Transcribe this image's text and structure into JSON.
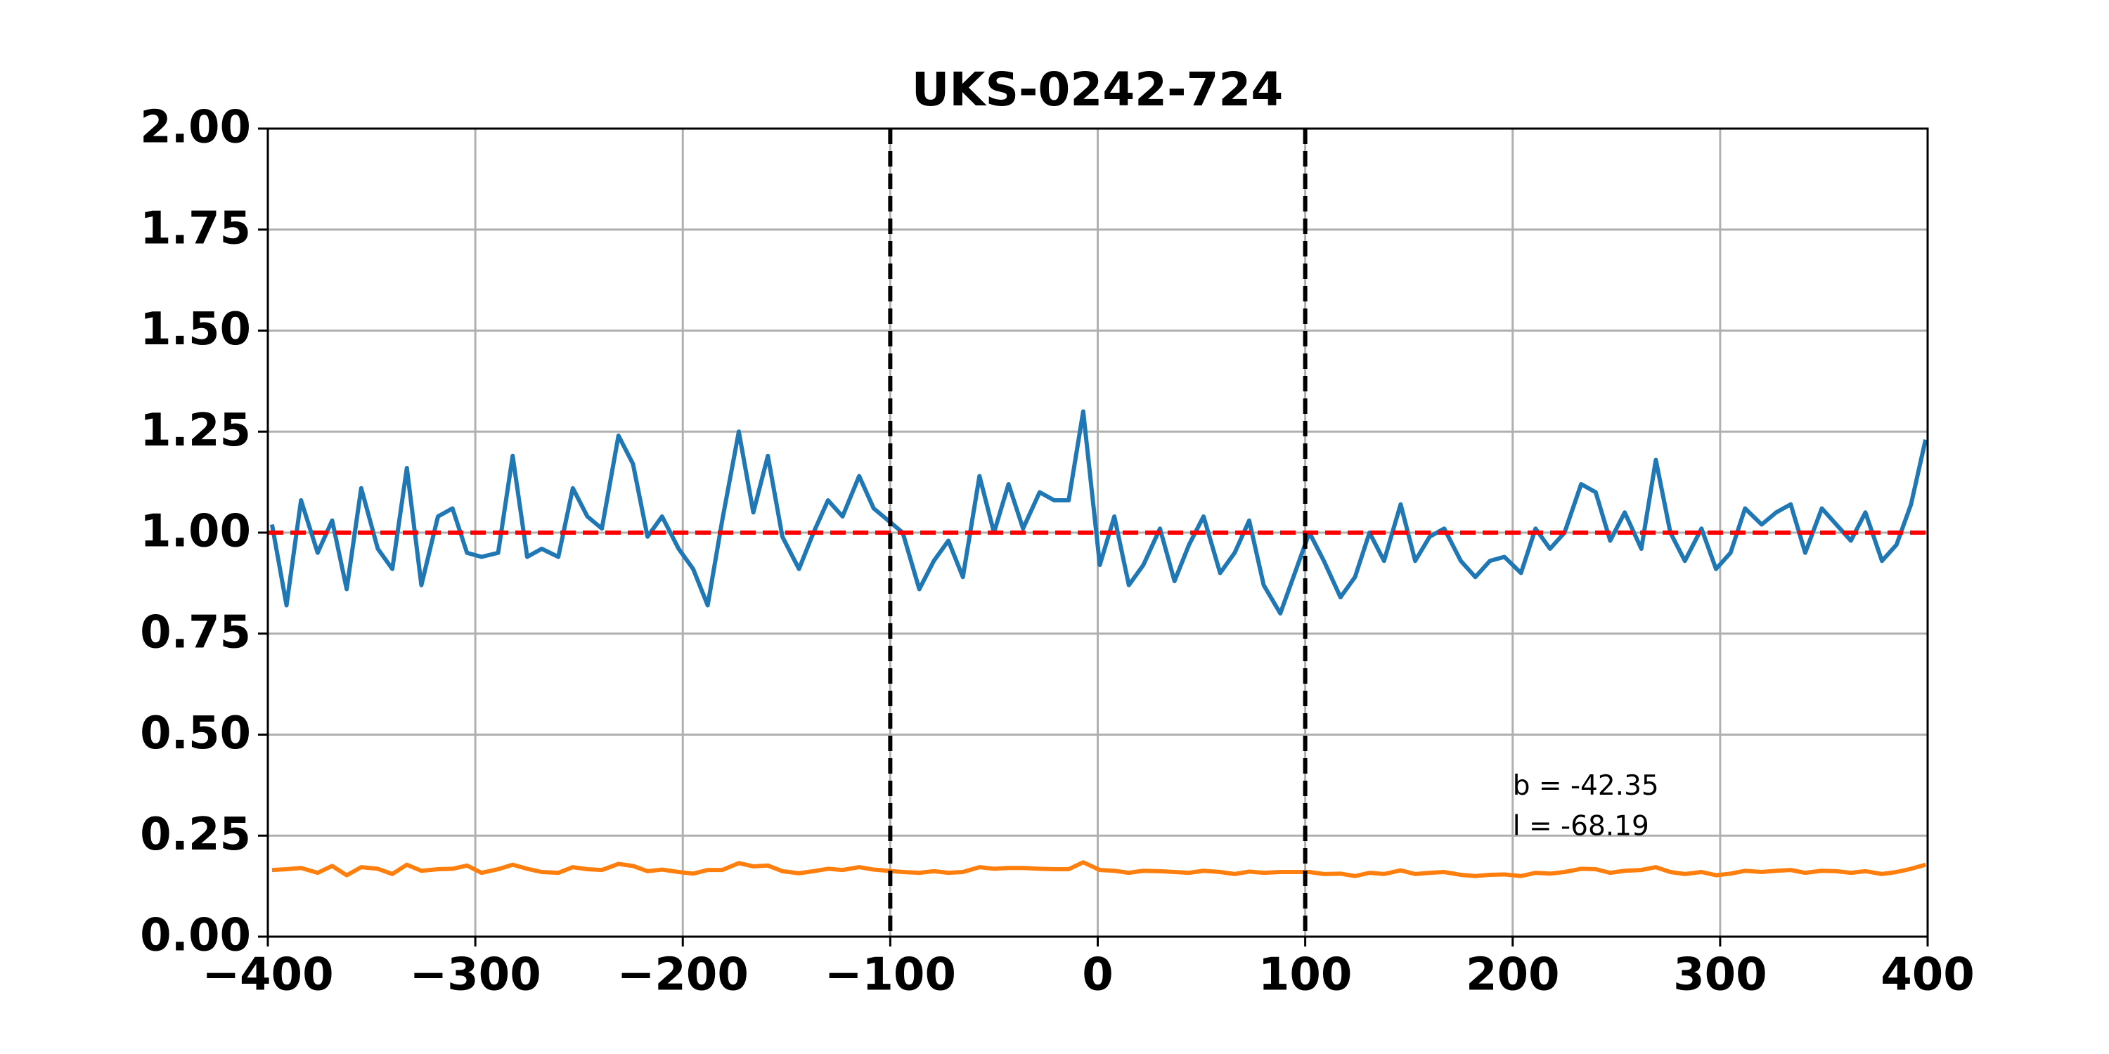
{
  "chart_data": {
    "type": "line",
    "title": "UKS-0242-724",
    "x": [
      -398,
      -391,
      -384,
      -376,
      -369,
      -362,
      -355,
      -347,
      -340,
      -333,
      -326,
      -318,
      -311,
      -304,
      -297,
      -289,
      -282,
      -275,
      -268,
      -260,
      -253,
      -246,
      -239,
      -231,
      -224,
      -217,
      -210,
      -202,
      -195,
      -188,
      -181,
      -173,
      -166,
      -159,
      -152,
      -144,
      -137,
      -130,
      -123,
      -115,
      -108,
      -101,
      -94,
      -86,
      -79,
      -72,
      -65,
      -57,
      -50,
      -43,
      -36,
      -28,
      -21,
      -14,
      -7,
      1,
      8,
      15,
      22,
      30,
      37,
      44,
      51,
      59,
      66,
      73,
      80,
      88,
      95,
      102,
      109,
      117,
      124,
      131,
      138,
      146,
      153,
      160,
      167,
      175,
      182,
      189,
      196,
      204,
      211,
      218,
      225,
      233,
      240,
      247,
      254,
      262,
      269,
      276,
      283,
      291,
      298,
      305,
      312,
      320,
      327,
      334,
      341,
      349,
      356,
      363,
      370,
      378,
      385,
      392,
      399
    ],
    "series": [
      {
        "color": "#1f77b4",
        "values": [
          1.02,
          0.82,
          1.08,
          0.95,
          1.03,
          0.86,
          1.11,
          0.96,
          0.91,
          1.16,
          0.87,
          1.04,
          1.06,
          0.95,
          0.94,
          0.95,
          1.19,
          0.94,
          0.96,
          0.94,
          1.11,
          1.04,
          1.01,
          1.24,
          1.17,
          0.99,
          1.04,
          0.96,
          0.91,
          0.82,
          1.03,
          1.25,
          1.05,
          1.19,
          0.99,
          0.91,
          1.0,
          1.08,
          1.04,
          1.14,
          1.06,
          1.03,
          1.0,
          0.86,
          0.93,
          0.98,
          0.89,
          1.14,
          1.0,
          1.12,
          1.01,
          1.1,
          1.08,
          1.08,
          1.3,
          0.92,
          1.04,
          0.87,
          0.92,
          1.01,
          0.88,
          0.97,
          1.04,
          0.9,
          0.95,
          1.03,
          0.87,
          0.8,
          0.9,
          1.0,
          0.93,
          0.84,
          0.89,
          1.0,
          0.93,
          1.07,
          0.93,
          0.99,
          1.01,
          0.93,
          0.89,
          0.93,
          0.94,
          0.9,
          1.01,
          0.96,
          1.0,
          1.12,
          1.1,
          0.98,
          1.05,
          0.96,
          1.18,
          1.0,
          0.93,
          1.01,
          0.91,
          0.95,
          1.06,
          1.02,
          1.05,
          1.07,
          0.95,
          1.06,
          1.02,
          0.98,
          1.05,
          0.93,
          0.97,
          1.07,
          1.23
        ]
      },
      {
        "color": "#ff7f0e",
        "values": [
          0.165,
          0.167,
          0.17,
          0.158,
          0.175,
          0.152,
          0.172,
          0.168,
          0.155,
          0.178,
          0.163,
          0.167,
          0.168,
          0.176,
          0.158,
          0.167,
          0.178,
          0.168,
          0.16,
          0.158,
          0.172,
          0.167,
          0.165,
          0.18,
          0.175,
          0.162,
          0.166,
          0.16,
          0.156,
          0.165,
          0.165,
          0.182,
          0.174,
          0.176,
          0.162,
          0.157,
          0.162,
          0.168,
          0.165,
          0.172,
          0.166,
          0.163,
          0.16,
          0.158,
          0.162,
          0.158,
          0.16,
          0.172,
          0.168,
          0.17,
          0.17,
          0.168,
          0.167,
          0.167,
          0.184,
          0.165,
          0.163,
          0.158,
          0.163,
          0.162,
          0.16,
          0.158,
          0.163,
          0.16,
          0.155,
          0.161,
          0.158,
          0.16,
          0.16,
          0.16,
          0.155,
          0.156,
          0.15,
          0.158,
          0.155,
          0.164,
          0.155,
          0.158,
          0.16,
          0.153,
          0.15,
          0.153,
          0.154,
          0.15,
          0.158,
          0.156,
          0.16,
          0.168,
          0.167,
          0.158,
          0.163,
          0.165,
          0.172,
          0.16,
          0.155,
          0.16,
          0.152,
          0.156,
          0.163,
          0.16,
          0.163,
          0.165,
          0.158,
          0.163,
          0.162,
          0.158,
          0.162,
          0.155,
          0.16,
          0.168,
          0.178
        ]
      }
    ],
    "xlim": [
      -400,
      400
    ],
    "xticks": [
      {
        "value": -400,
        "label": "−400"
      },
      {
        "value": -300,
        "label": "−300"
      },
      {
        "value": -200,
        "label": "−200"
      },
      {
        "value": -100,
        "label": "−100"
      },
      0,
      100,
      200,
      300,
      400
    ],
    "ylim": [
      0,
      2
    ],
    "yticks": [
      {
        "value": 0,
        "label": "0.00"
      },
      {
        "value": 0.25,
        "label": "0.25"
      },
      {
        "value": 0.5,
        "label": "0.50"
      },
      {
        "value": 0.75,
        "label": "0.75"
      },
      {
        "value": 1,
        "label": "1.00"
      },
      {
        "value": 1.25,
        "label": "1.25"
      },
      {
        "value": 1.5,
        "label": "1.50"
      },
      {
        "value": 1.75,
        "label": "1.75"
      },
      {
        "value": 2,
        "label": "2.00"
      }
    ],
    "grid": true,
    "hlines": [
      {
        "value": 1,
        "color": "#ff0000"
      }
    ],
    "vlines": [
      {
        "value": -100,
        "color": "#000000"
      },
      {
        "value": 100,
        "color": "#000000"
      }
    ],
    "annotations": [
      {
        "text": "b = -42.35",
        "x": 200,
        "y": 0.37
      },
      {
        "text": "l = -68.19",
        "x": 200,
        "y": 0.27
      }
    ]
  }
}
